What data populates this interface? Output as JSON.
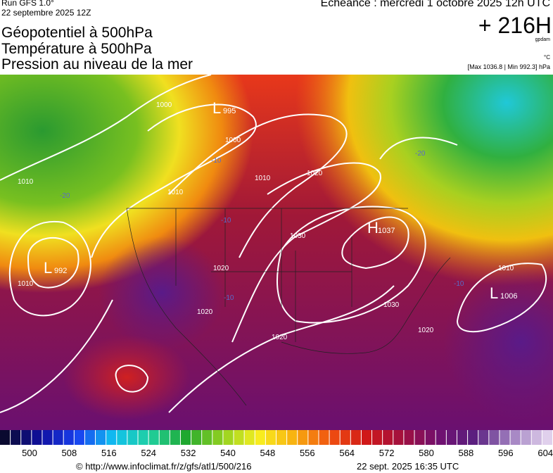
{
  "header": {
    "run": "Run GFS 1.0°",
    "run_date": "22 septembre 2025 12Z",
    "valid": "Echéance : mercredi 1 octobre 2025 12h UTC",
    "lead": "+ 216H",
    "lead_unit": "gpdam",
    "temp_unit": "°C",
    "pressure_range": "[Max 1036.8 | Min 992.3] hPa",
    "titles": [
      "Géopotentiel à 500hPa",
      "Température à 500hPa",
      "Pression au niveau de la mer"
    ]
  },
  "map": {
    "centers": [
      {
        "letter": "L",
        "value": "995"
      },
      {
        "letter": "H",
        "value": "1037"
      },
      {
        "letter": "L",
        "value": "992"
      },
      {
        "letter": "L",
        "value": "1006"
      }
    ],
    "isobar_labels": [
      "1000",
      "1000",
      "1010",
      "1010",
      "1010",
      "1020",
      "1030",
      "1020",
      "1020",
      "1020",
      "1030",
      "1020",
      "1010",
      "1010"
    ],
    "temp_labels": [
      "-20",
      "-20",
      "-10",
      "-10",
      "-10",
      "-10"
    ]
  },
  "legend": {
    "ticks": [
      "500",
      "508",
      "516",
      "524",
      "532",
      "540",
      "548",
      "556",
      "564",
      "572",
      "580",
      "588",
      "596",
      "604"
    ]
  },
  "footer": {
    "source": "© http://www.infoclimat.fr/z/gfs/atl1/500/216",
    "generated": "22 sept. 2025 16:35 UTC"
  }
}
